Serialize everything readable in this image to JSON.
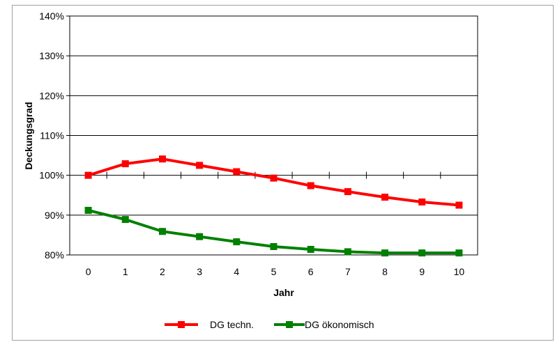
{
  "chart_data": {
    "type": "line",
    "title": "",
    "xlabel": "Jahr",
    "ylabel": "Deckungsgrad",
    "x": [
      0,
      1,
      2,
      3,
      4,
      5,
      6,
      7,
      8,
      9,
      10
    ],
    "x_tick_labels": [
      "0",
      "1",
      "2",
      "3",
      "4",
      "5",
      "6",
      "7",
      "8",
      "9",
      "10"
    ],
    "ylim": [
      0.8,
      1.4
    ],
    "y_ticks": [
      0.8,
      0.9,
      1.0,
      1.1,
      1.2,
      1.3,
      1.4
    ],
    "y_tick_labels": [
      "80%",
      "90%",
      "100%",
      "110%",
      "120%",
      "130%",
      "140%"
    ],
    "grid": "horizontal",
    "legend_position": "bottom",
    "series": [
      {
        "name": "DG techn.",
        "color": "#ff0000",
        "values": [
          1.0,
          1.029,
          1.041,
          1.025,
          1.009,
          0.993,
          0.974,
          0.959,
          0.945,
          0.933,
          0.925
        ]
      },
      {
        "name": "DG ökonomisch",
        "color": "#008000",
        "values": [
          0.912,
          0.889,
          0.859,
          0.846,
          0.833,
          0.821,
          0.814,
          0.808,
          0.805,
          0.805,
          0.805
        ]
      }
    ]
  }
}
